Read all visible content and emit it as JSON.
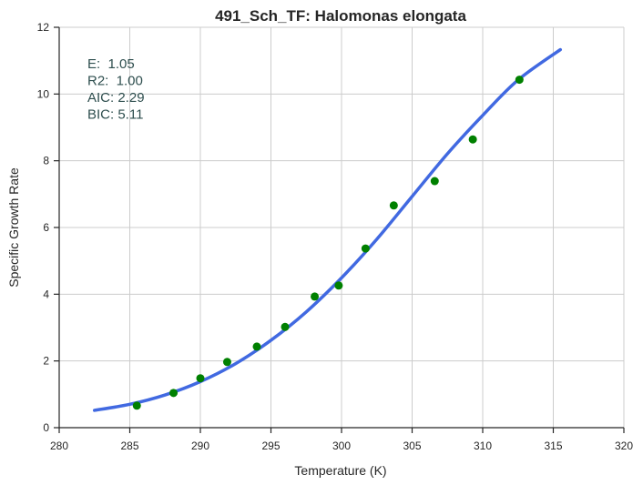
{
  "chart_data": {
    "type": "scatter",
    "title": "491_Sch_TF: Halomonas elongata",
    "xlabel": "Temperature (K)",
    "ylabel": "Specific Growth Rate",
    "xlim": [
      280,
      320
    ],
    "ylim": [
      0,
      12
    ],
    "xticks": [
      280,
      285,
      290,
      295,
      300,
      305,
      310,
      315,
      320
    ],
    "yticks": [
      0,
      2,
      4,
      6,
      8,
      10,
      12
    ],
    "grid": true,
    "annotations": [
      "E:  1.05",
      "R2:  1.00",
      "AIC: 2.29",
      "BIC: 5.11"
    ],
    "points": {
      "color": "#008000",
      "x": [
        285.5,
        288.1,
        290.0,
        291.9,
        294.0,
        296.0,
        298.1,
        299.8,
        301.7,
        303.7,
        306.6,
        309.3,
        312.6
      ],
      "y": [
        0.66,
        1.04,
        1.48,
        1.97,
        2.43,
        3.02,
        3.93,
        4.26,
        5.37,
        6.66,
        7.39,
        8.64,
        10.43
      ]
    },
    "fit": {
      "color": "#4169e1",
      "x": [
        282.5,
        285,
        287.5,
        290,
        292.5,
        295,
        297.5,
        300,
        302.5,
        305,
        307.5,
        310,
        312.5,
        315.5
      ],
      "y": [
        0.52,
        0.7,
        0.98,
        1.38,
        1.92,
        2.62,
        3.47,
        4.49,
        5.65,
        6.93,
        8.21,
        9.36,
        10.42,
        11.33
      ]
    }
  }
}
